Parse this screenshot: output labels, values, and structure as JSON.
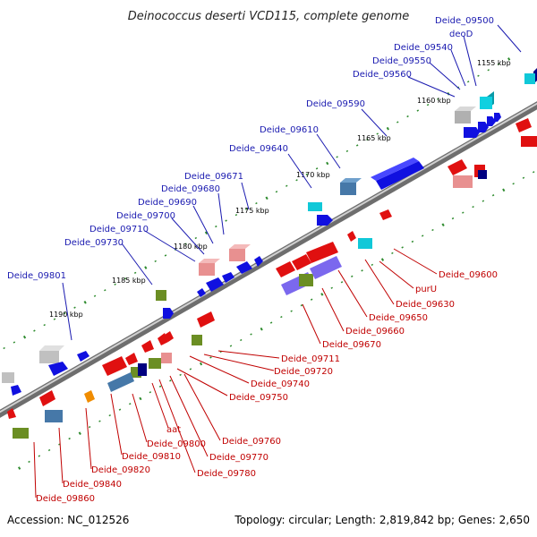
{
  "header": {
    "title": "Deinococcus deserti VCD115, complete genome"
  },
  "footer": {
    "accession": "Accession: NC_012526",
    "topology": "Topology: circular; Length: 2,819,842 bp; Genes: 2,650"
  },
  "scale_ticks": [
    "1155 kbp",
    "1160 kbp",
    "1165 kbp",
    "1170 kbp",
    "1175 kbp",
    "1180 kbp",
    "1185 kbp",
    "1190 kbp"
  ],
  "labels_top": [
    "Deide_09500",
    "deoD",
    "Deide_09540",
    "Deide_09550",
    "Deide_09560",
    "Deide_09590",
    "Deide_09610",
    "Deide_09640",
    "Deide_09671",
    "Deide_09680",
    "Deide_09690",
    "Deide_09700",
    "Deide_09710",
    "Deide_09730",
    "Deide_09801"
  ],
  "labels_bottom": [
    "Deide_09600",
    "purU",
    "Deide_09630",
    "Deide_09650",
    "Deide_09660",
    "Deide_09670",
    "Deide_09711",
    "Deide_09720",
    "Deide_09740",
    "Deide_09750",
    "Deide_09760",
    "Deide_09770",
    "Deide_09780",
    "aat",
    "Deide_09800",
    "Deide_09810",
    "Deide_09820",
    "Deide_09840",
    "Deide_09860"
  ],
  "colors": {
    "forward_strand_label": "#1a1ab0",
    "reverse_strand_label": "#c00000",
    "backbone": "#909090",
    "scale_dots": "#2e8b2e",
    "gene_blue": "#1010e0",
    "gene_red": "#e01010",
    "gene_light_red": "#e89090",
    "gene_cyan": "#10c8d8",
    "gene_steel": "#4678a8",
    "gene_olive": "#6b8e23",
    "gene_grey": "#b0b0b0",
    "gene_navy": "#000080",
    "gene_slate": "#7b68ee",
    "gene_orange": "#f08c00"
  }
}
